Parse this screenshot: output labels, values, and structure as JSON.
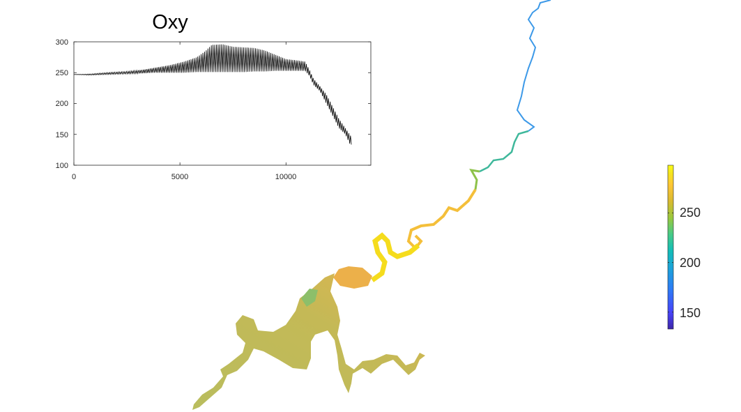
{
  "chart_data": [
    {
      "type": "line",
      "title": "Oxy",
      "xlabel": "",
      "ylabel": "",
      "xlim": [
        0,
        14000
      ],
      "ylim": [
        100,
        300
      ],
      "xticks": [
        "0",
        "5000",
        "10000"
      ],
      "yticks": [
        "100",
        "150",
        "200",
        "250",
        "300"
      ],
      "grid": false,
      "legend": "none",
      "line_color": "#000000",
      "series": [
        {
          "x": [
            0,
            800,
            1500,
            2500,
            3300,
            3800,
            4500,
            5200,
            5800,
            6200,
            6500,
            7000,
            7500,
            8000,
            8500,
            9000,
            9500,
            10000,
            10500,
            10900,
            11100,
            11300,
            11600,
            11900,
            12200,
            12500,
            12800,
            13000,
            13100
          ],
          "upper": [
            247,
            248,
            250,
            252,
            255,
            258,
            262,
            268,
            275,
            285,
            295,
            296,
            292,
            291,
            290,
            286,
            279,
            272,
            270,
            268,
            255,
            240,
            228,
            215,
            195,
            175,
            160,
            150,
            145
          ],
          "lower": [
            247,
            246,
            247,
            248,
            249,
            250,
            250,
            250,
            251,
            251,
            251,
            251,
            251,
            251,
            252,
            252,
            253,
            253,
            253,
            253,
            245,
            230,
            220,
            200,
            180,
            160,
            150,
            135,
            133
          ]
        }
      ]
    },
    {
      "type": "heatmap",
      "title": "",
      "colorbar": {
        "range": [
          133,
          298
        ],
        "ticks": [
          "150",
          "200",
          "250"
        ],
        "colormap": [
          "#3e26a8",
          "#4743f8",
          "#2c7ef6",
          "#1aa5d7",
          "#13beb7",
          "#48cb86",
          "#9ac83c",
          "#d9ba30",
          "#fec635",
          "#f5e41d",
          "#f9fb15"
        ]
      },
      "legend": "none",
      "grid": false
    }
  ]
}
